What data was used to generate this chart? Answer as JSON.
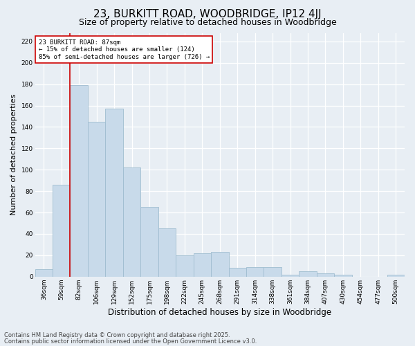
{
  "title": "23, BURKITT ROAD, WOODBRIDGE, IP12 4JJ",
  "subtitle": "Size of property relative to detached houses in Woodbridge",
  "xlabel": "Distribution of detached houses by size in Woodbridge",
  "ylabel": "Number of detached properties",
  "bar_color": "#c8daea",
  "bar_edgecolor": "#a0bdd0",
  "categories": [
    "36sqm",
    "59sqm",
    "82sqm",
    "106sqm",
    "129sqm",
    "152sqm",
    "175sqm",
    "198sqm",
    "222sqm",
    "245sqm",
    "268sqm",
    "291sqm",
    "314sqm",
    "338sqm",
    "361sqm",
    "384sqm",
    "407sqm",
    "430sqm",
    "454sqm",
    "477sqm",
    "500sqm"
  ],
  "values": [
    7,
    86,
    179,
    145,
    157,
    102,
    65,
    45,
    20,
    22,
    23,
    8,
    9,
    9,
    2,
    5,
    3,
    2,
    0,
    0,
    2
  ],
  "vline_color": "#cc0000",
  "vline_x_index": 1.5,
  "annotation_text": "23 BURKITT ROAD: 87sqm\n← 15% of detached houses are smaller (124)\n85% of semi-detached houses are larger (726) →",
  "annotation_box_facecolor": "#ffffff",
  "annotation_box_edgecolor": "#cc0000",
  "ylim": [
    0,
    228
  ],
  "yticks": [
    0,
    20,
    40,
    60,
    80,
    100,
    120,
    140,
    160,
    180,
    200,
    220
  ],
  "background_color": "#e8eef4",
  "plot_bg_color": "#e8eef4",
  "grid_color": "#ffffff",
  "title_fontsize": 11,
  "subtitle_fontsize": 9,
  "tick_fontsize": 6.5,
  "ylabel_fontsize": 8,
  "xlabel_fontsize": 8.5,
  "annotation_fontsize": 6.5,
  "footer_fontsize": 6,
  "footer1": "Contains HM Land Registry data © Crown copyright and database right 2025.",
  "footer2": "Contains public sector information licensed under the Open Government Licence v3.0."
}
